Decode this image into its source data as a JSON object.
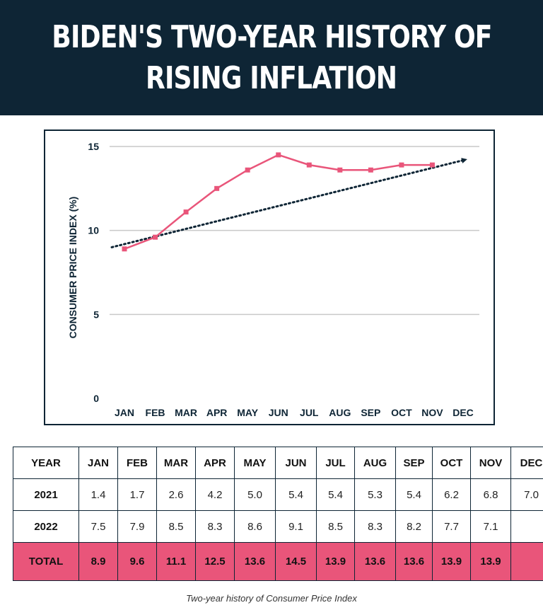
{
  "header": {
    "title_line1": "BIDEN'S TWO-YEAR HISTORY OF",
    "title_line2": "RISING INFLATION"
  },
  "colors": {
    "header_bg": "#0e2535",
    "accent": "#e9557a",
    "trend": "#0e2535"
  },
  "chart_data": {
    "type": "line",
    "categories": [
      "JAN",
      "FEB",
      "MAR",
      "APR",
      "MAY",
      "JUN",
      "JUL",
      "AUG",
      "SEP",
      "OCT",
      "NOV",
      "DEC"
    ],
    "series": [
      {
        "values": [
          8.9,
          9.6,
          11.1,
          12.5,
          13.6,
          14.5,
          13.9,
          13.6,
          13.6,
          13.9,
          13.9,
          null
        ]
      }
    ],
    "trendline": {
      "start": 9.0,
      "end": 14.2,
      "style": "dotted-arrow"
    },
    "yticks": [
      0,
      5,
      10,
      15
    ],
    "ylim": [
      0,
      15
    ],
    "xlabel": "",
    "ylabel": "CONSUMER PRICE INDEX (%)",
    "grid": true
  },
  "table": {
    "header": [
      "YEAR",
      "JAN",
      "FEB",
      "MAR",
      "APR",
      "MAY",
      "JUN",
      "JUL",
      "AUG",
      "SEP",
      "OCT",
      "NOV",
      "DEC"
    ],
    "rows": [
      {
        "label": "2021",
        "cells": [
          "1.4",
          "1.7",
          "2.6",
          "4.2",
          "5.0",
          "5.4",
          "5.4",
          "5.3",
          "5.4",
          "6.2",
          "6.8",
          "7.0"
        ]
      },
      {
        "label": "2022",
        "cells": [
          "7.5",
          "7.9",
          "8.5",
          "8.3",
          "8.6",
          "9.1",
          "8.5",
          "8.3",
          "8.2",
          "7.7",
          "7.1",
          ""
        ]
      }
    ],
    "total": {
      "label": "TOTAL",
      "cells": [
        "8.9",
        "9.6",
        "11.1",
        "12.5",
        "13.6",
        "14.5",
        "13.9",
        "13.6",
        "13.6",
        "13.9",
        "13.9",
        ""
      ]
    }
  },
  "caption": "Two-year history of Consumer Price Index"
}
